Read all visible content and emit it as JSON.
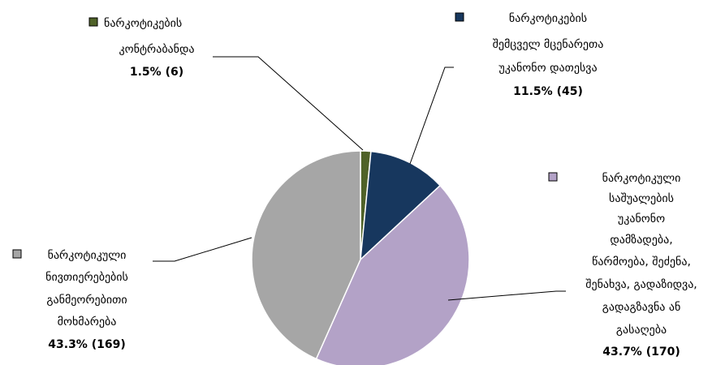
{
  "chart_data": {
    "type": "pie",
    "start_angle_deg": 0,
    "direction": "clockwise",
    "slices": [
      {
        "label_lines": [
          "ნარკოტიკების",
          "კონტრაბანდა"
        ],
        "percent": 1.5,
        "count": 6,
        "value_text": "1.5%  (6)",
        "color": "#4f6228"
      },
      {
        "label_lines": [
          "ნარკოტიკების",
          "შემცველ მცენარეთა",
          "უკანონო დათესვა"
        ],
        "percent": 11.5,
        "count": 45,
        "value_text": "11.5%  (45)",
        "color": "#17375e"
      },
      {
        "label_lines": [
          "ნარკოტიკული",
          "საშუალების",
          "უკანონო",
          "დამზადება,",
          "წარმოება, შეძენა,",
          "შენახვა, გადაზიდვა,",
          "გადაგზავნა ან",
          "გასაღება"
        ],
        "percent": 43.7,
        "count": 170,
        "value_text": "43.7%  (170)",
        "color": "#b3a2c7"
      },
      {
        "label_lines": [
          "ნარკოტიკული",
          "ნივთიერებების",
          "განმეორებითი",
          "მოხმარება"
        ],
        "percent": 43.3,
        "count": 169,
        "value_text": "43.3%  (169)",
        "color": "#a6a6a6"
      }
    ]
  }
}
